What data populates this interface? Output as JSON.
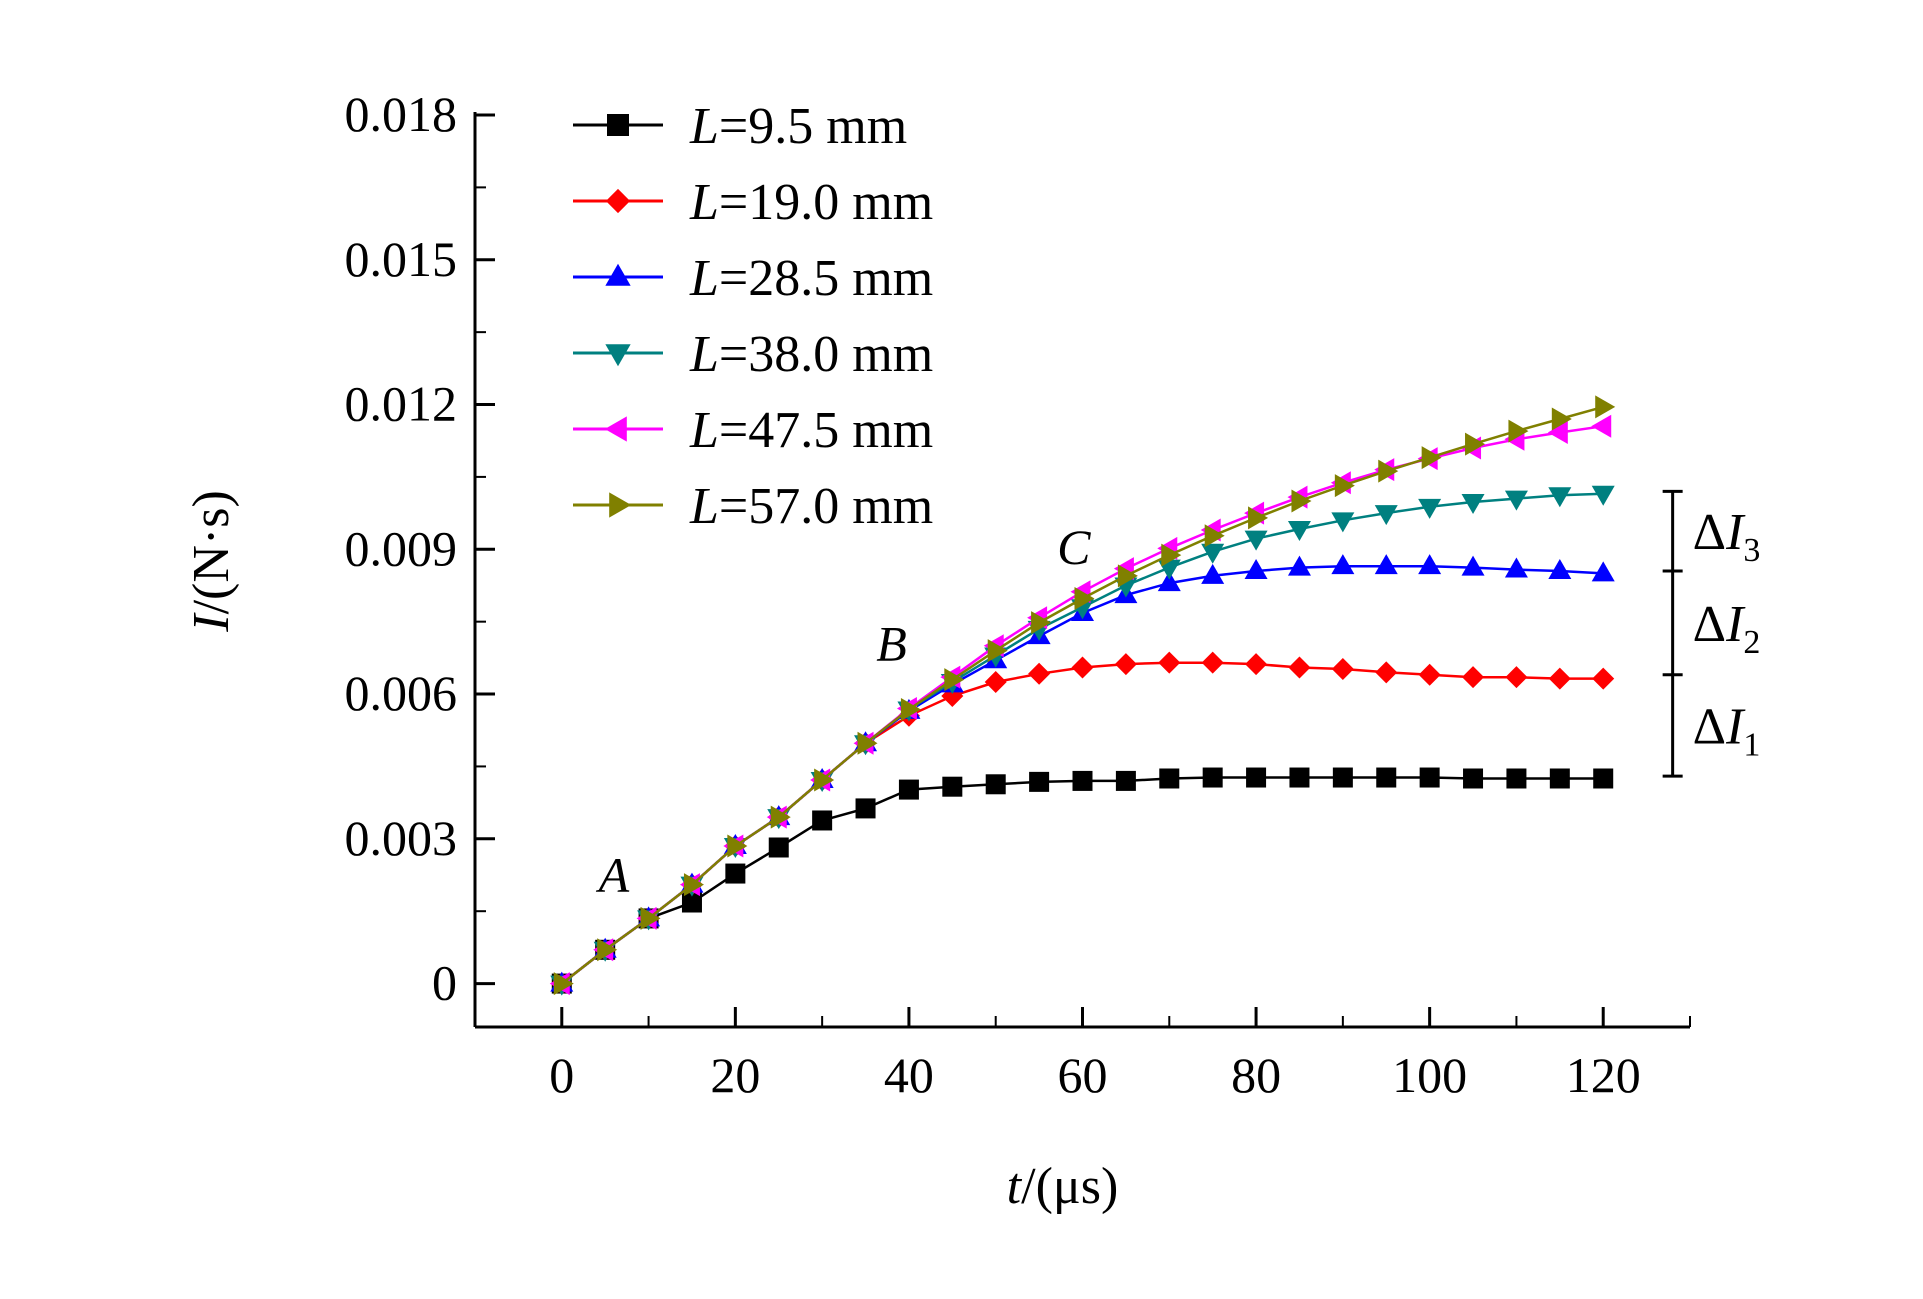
{
  "chart_data": {
    "type": "line",
    "title": "",
    "xlabel": {
      "var": "t",
      "unit": "/(μs)"
    },
    "ylabel": {
      "var": "I",
      "unit": "/(N·s)"
    },
    "xlim": [
      -10,
      130
    ],
    "ylim": [
      -0.0009,
      0.018
    ],
    "x_ticks": [
      "0",
      "20",
      "40",
      "60",
      "80",
      "100",
      "120"
    ],
    "y_ticks": [
      "0",
      "0.003",
      "0.006",
      "0.009",
      "0.012",
      "0.015",
      "0.018"
    ],
    "x": [
      0,
      5,
      10,
      15,
      20,
      25,
      30,
      35,
      40,
      45,
      50,
      55,
      60,
      65,
      70,
      75,
      80,
      85,
      90,
      95,
      100,
      105,
      110,
      115,
      120
    ],
    "series": [
      {
        "var": "L",
        "value": "=9.5 mm",
        "color": "#000000",
        "marker": "square",
        "values": [
          0,
          0.0007,
          0.00135,
          0.00168,
          0.00228,
          0.00282,
          0.00338,
          0.00363,
          0.00402,
          0.00408,
          0.00413,
          0.00418,
          0.0042,
          0.0042,
          0.00425,
          0.00427,
          0.00427,
          0.00427,
          0.00427,
          0.00427,
          0.00427,
          0.00425,
          0.00425,
          0.00425,
          0.00425
        ]
      },
      {
        "var": "L",
        "value": "=19.0 mm",
        "color": "#ff0000",
        "marker": "diamond",
        "values": [
          0,
          0.0007,
          0.00135,
          0.00205,
          0.00285,
          0.00345,
          0.00422,
          0.00498,
          0.00555,
          0.00596,
          0.00625,
          0.00642,
          0.00655,
          0.00662,
          0.00665,
          0.00665,
          0.00662,
          0.00655,
          0.00652,
          0.00645,
          0.0064,
          0.00635,
          0.00635,
          0.00632,
          0.00632
        ]
      },
      {
        "var": "L",
        "value": "=28.5 mm",
        "color": "#0000ff",
        "marker": "triangle-up",
        "values": [
          0,
          0.0007,
          0.00135,
          0.00205,
          0.00285,
          0.00345,
          0.00422,
          0.00498,
          0.00565,
          0.0062,
          0.0067,
          0.0072,
          0.00768,
          0.00805,
          0.0083,
          0.00845,
          0.00855,
          0.00862,
          0.00865,
          0.00865,
          0.00865,
          0.00862,
          0.00858,
          0.00855,
          0.0085
        ]
      },
      {
        "var": "L",
        "value": "=38.0 mm",
        "color": "#008080",
        "marker": "triangle-down",
        "values": [
          0,
          0.0007,
          0.00135,
          0.00205,
          0.00285,
          0.00345,
          0.00422,
          0.00498,
          0.00568,
          0.00625,
          0.0068,
          0.00735,
          0.0078,
          0.00825,
          0.00862,
          0.00895,
          0.00922,
          0.00942,
          0.0096,
          0.00975,
          0.00988,
          0.00998,
          0.01005,
          0.01012,
          0.01015
        ]
      },
      {
        "var": "L",
        "value": "=47.5 mm",
        "color": "#ff00ff",
        "marker": "triangle-left",
        "values": [
          0,
          0.0007,
          0.00135,
          0.00205,
          0.00285,
          0.00345,
          0.00422,
          0.00498,
          0.0057,
          0.00635,
          0.007,
          0.00758,
          0.00812,
          0.0086,
          0.00902,
          0.0094,
          0.00975,
          0.01008,
          0.01038,
          0.01065,
          0.01088,
          0.0111,
          0.01128,
          0.01142,
          0.01155
        ]
      },
      {
        "var": "L",
        "value": "=57.0 mm",
        "color": "#808000",
        "marker": "triangle-right",
        "values": [
          0,
          0.0007,
          0.00135,
          0.00205,
          0.00285,
          0.00345,
          0.00422,
          0.00498,
          0.00568,
          0.0063,
          0.0069,
          0.00748,
          0.00798,
          0.00845,
          0.00888,
          0.00928,
          0.00965,
          0.01,
          0.01032,
          0.01062,
          0.0109,
          0.01118,
          0.01145,
          0.0117,
          0.01195
        ]
      }
    ],
    "annotations": [
      {
        "text": "A",
        "x": 6,
        "y": 0.0019
      },
      {
        "text": "B",
        "x": 38,
        "y": 0.0067
      },
      {
        "text": "C",
        "x": 59,
        "y": 0.0087
      }
    ],
    "delta_bracket": {
      "x": 128,
      "levels": [
        0.0043,
        0.0064,
        0.00855,
        0.0102
      ],
      "labels": [
        {
          "sym": "ΔI",
          "sub": "1"
        },
        {
          "sym": "ΔI",
          "sub": "2"
        },
        {
          "sym": "ΔI",
          "sub": "3"
        }
      ]
    },
    "legend_position": "top-left"
  }
}
